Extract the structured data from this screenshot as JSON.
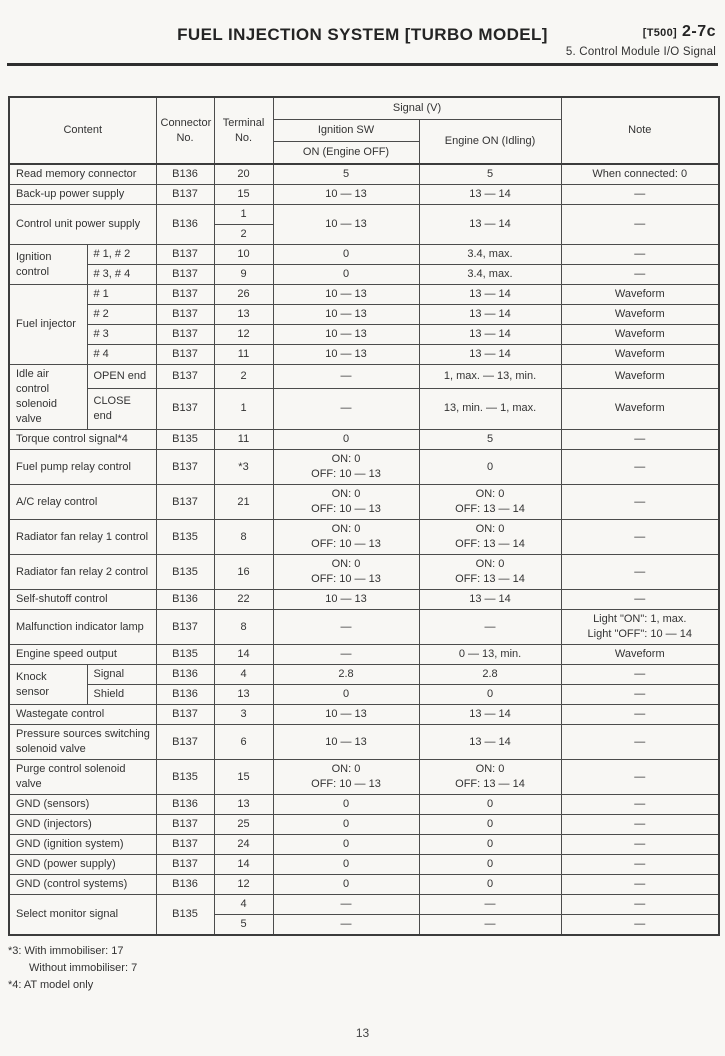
{
  "page": {
    "header": {
      "title": "FUEL INJECTION SYSTEM [TURBO MODEL]",
      "code_small": "[T500]",
      "code_large": "2-7c",
      "subtitle": "5. Control Module I/O Signal"
    },
    "footnotes": {
      "line1": "*3: With immobiliser: 17",
      "line2": "Without immobiliser: 7",
      "line3": "*4: AT model only"
    },
    "page_number": "13"
  },
  "table": {
    "header": {
      "content": "Content",
      "connector": "Connector No.",
      "terminal": "Terminal No.",
      "signal": "Signal (V)",
      "ignition_sw": "Ignition SW",
      "ignition_sw_sub": "ON (Engine OFF)",
      "engine_on": "Engine ON (Idling)",
      "note": "Note"
    },
    "rows": [
      [
        {
          "t": "Read memory connector",
          "cs": 2,
          "al": "l"
        },
        {
          "t": "B136"
        },
        {
          "t": "20"
        },
        {
          "t": "5"
        },
        {
          "t": "5"
        },
        {
          "t": "When connected: 0"
        }
      ],
      [
        {
          "t": "Back-up power supply",
          "cs": 2,
          "al": "l"
        },
        {
          "t": "B137"
        },
        {
          "t": "15"
        },
        {
          "t": "10 — 13"
        },
        {
          "t": "13 — 14"
        },
        {
          "t": "—"
        }
      ],
      [
        {
          "t": "Control unit power supply",
          "cs": 2,
          "rs": 2,
          "al": "l"
        },
        {
          "t": "B136",
          "rs": 2
        },
        {
          "t": "1"
        },
        {
          "t": "10 — 13",
          "rs": 2
        },
        {
          "t": "13 — 14",
          "rs": 2
        },
        {
          "t": "—",
          "rs": 2
        }
      ],
      [
        {
          "t": "2"
        }
      ],
      [
        {
          "t": "Ignition control",
          "rs": 2,
          "al": "l"
        },
        {
          "t": "# 1, # 2",
          "al": "l"
        },
        {
          "t": "B137"
        },
        {
          "t": "10"
        },
        {
          "t": "0"
        },
        {
          "t": "3.4, max."
        },
        {
          "t": "—"
        }
      ],
      [
        {
          "t": "# 3, # 4",
          "al": "l"
        },
        {
          "t": "B137"
        },
        {
          "t": "9"
        },
        {
          "t": "0"
        },
        {
          "t": "3.4, max."
        },
        {
          "t": "—"
        }
      ],
      [
        {
          "t": "Fuel injector",
          "rs": 4,
          "al": "l"
        },
        {
          "t": "# 1",
          "al": "l"
        },
        {
          "t": "B137"
        },
        {
          "t": "26"
        },
        {
          "t": "10 — 13"
        },
        {
          "t": "13 — 14"
        },
        {
          "t": "Waveform"
        }
      ],
      [
        {
          "t": "# 2",
          "al": "l"
        },
        {
          "t": "B137"
        },
        {
          "t": "13"
        },
        {
          "t": "10 — 13"
        },
        {
          "t": "13 — 14"
        },
        {
          "t": "Waveform"
        }
      ],
      [
        {
          "t": "# 3",
          "al": "l"
        },
        {
          "t": "B137"
        },
        {
          "t": "12"
        },
        {
          "t": "10 — 13"
        },
        {
          "t": "13 — 14"
        },
        {
          "t": "Waveform"
        }
      ],
      [
        {
          "t": "# 4",
          "al": "l"
        },
        {
          "t": "B137"
        },
        {
          "t": "11"
        },
        {
          "t": "10 — 13"
        },
        {
          "t": "13 — 14"
        },
        {
          "t": "Waveform"
        }
      ],
      [
        {
          "t": "Idle air control solenoid valve",
          "rs": 2,
          "al": "l"
        },
        {
          "t": "OPEN end",
          "al": "l"
        },
        {
          "t": "B137"
        },
        {
          "t": "2"
        },
        {
          "t": "—"
        },
        {
          "t": "1, max. — 13, min."
        },
        {
          "t": "Waveform"
        }
      ],
      [
        {
          "t": "CLOSE end",
          "al": "l"
        },
        {
          "t": "B137"
        },
        {
          "t": "1"
        },
        {
          "t": "—"
        },
        {
          "t": "13, min. — 1, max."
        },
        {
          "t": "Waveform"
        }
      ],
      [
        {
          "t": "Torque control signal*4",
          "cs": 2,
          "al": "l"
        },
        {
          "t": "B135"
        },
        {
          "t": "11"
        },
        {
          "t": "0"
        },
        {
          "t": "5"
        },
        {
          "t": "—"
        }
      ],
      [
        {
          "t": "Fuel pump relay control",
          "cs": 2,
          "al": "l"
        },
        {
          "t": "B137"
        },
        {
          "t": "*3"
        },
        {
          "t": "ON: 0\nOFF: 10 — 13"
        },
        {
          "t": "0"
        },
        {
          "t": "—"
        }
      ],
      [
        {
          "t": "A/C relay control",
          "cs": 2,
          "al": "l"
        },
        {
          "t": "B137"
        },
        {
          "t": "21"
        },
        {
          "t": "ON: 0\nOFF: 10 — 13"
        },
        {
          "t": "ON: 0\nOFF: 13 — 14"
        },
        {
          "t": "—"
        }
      ],
      [
        {
          "t": "Radiator fan relay 1 control",
          "cs": 2,
          "al": "l"
        },
        {
          "t": "B135"
        },
        {
          "t": "8"
        },
        {
          "t": "ON: 0\nOFF: 10 — 13"
        },
        {
          "t": "ON: 0\nOFF: 13 — 14"
        },
        {
          "t": "—"
        }
      ],
      [
        {
          "t": "Radiator fan relay 2 control",
          "cs": 2,
          "al": "l"
        },
        {
          "t": "B135"
        },
        {
          "t": "16"
        },
        {
          "t": "ON: 0\nOFF: 10 — 13"
        },
        {
          "t": "ON: 0\nOFF: 13 — 14"
        },
        {
          "t": "—"
        }
      ],
      [
        {
          "t": "Self-shutoff control",
          "cs": 2,
          "al": "l"
        },
        {
          "t": "B136"
        },
        {
          "t": "22"
        },
        {
          "t": "10 — 13"
        },
        {
          "t": "13 — 14"
        },
        {
          "t": "—"
        }
      ],
      [
        {
          "t": "Malfunction indicator lamp",
          "cs": 2,
          "al": "l"
        },
        {
          "t": "B137"
        },
        {
          "t": "8"
        },
        {
          "t": "—"
        },
        {
          "t": "—"
        },
        {
          "t": "Light \"ON\": 1, max.\nLight \"OFF\": 10 — 14"
        }
      ],
      [
        {
          "t": "Engine speed output",
          "cs": 2,
          "al": "l"
        },
        {
          "t": "B135"
        },
        {
          "t": "14"
        },
        {
          "t": "—"
        },
        {
          "t": "0 — 13, min."
        },
        {
          "t": "Waveform"
        }
      ],
      [
        {
          "t": "Knock sensor",
          "rs": 2,
          "al": "l"
        },
        {
          "t": "Signal",
          "al": "l"
        },
        {
          "t": "B136"
        },
        {
          "t": "4"
        },
        {
          "t": "2.8"
        },
        {
          "t": "2.8"
        },
        {
          "t": "—"
        }
      ],
      [
        {
          "t": "Shield",
          "al": "l"
        },
        {
          "t": "B136"
        },
        {
          "t": "13"
        },
        {
          "t": "0"
        },
        {
          "t": "0"
        },
        {
          "t": "—"
        }
      ],
      [
        {
          "t": "Wastegate control",
          "cs": 2,
          "al": "l"
        },
        {
          "t": "B137"
        },
        {
          "t": "3"
        },
        {
          "t": "10 — 13"
        },
        {
          "t": "13 — 14"
        },
        {
          "t": "—"
        }
      ],
      [
        {
          "t": "Pressure sources switching solenoid valve",
          "cs": 2,
          "al": "l"
        },
        {
          "t": "B137"
        },
        {
          "t": "6"
        },
        {
          "t": "10 — 13"
        },
        {
          "t": "13 — 14"
        },
        {
          "t": "—"
        }
      ],
      [
        {
          "t": "Purge control solenoid valve",
          "cs": 2,
          "al": "l"
        },
        {
          "t": "B135"
        },
        {
          "t": "15"
        },
        {
          "t": "ON: 0\nOFF: 10 — 13"
        },
        {
          "t": "ON: 0\nOFF: 13 — 14"
        },
        {
          "t": "—"
        }
      ],
      [
        {
          "t": "GND (sensors)",
          "cs": 2,
          "al": "l"
        },
        {
          "t": "B136"
        },
        {
          "t": "13"
        },
        {
          "t": "0"
        },
        {
          "t": "0"
        },
        {
          "t": "—"
        }
      ],
      [
        {
          "t": "GND (injectors)",
          "cs": 2,
          "al": "l"
        },
        {
          "t": "B137"
        },
        {
          "t": "25"
        },
        {
          "t": "0"
        },
        {
          "t": "0"
        },
        {
          "t": "—"
        }
      ],
      [
        {
          "t": "GND (ignition system)",
          "cs": 2,
          "al": "l"
        },
        {
          "t": "B137"
        },
        {
          "t": "24"
        },
        {
          "t": "0"
        },
        {
          "t": "0"
        },
        {
          "t": "—"
        }
      ],
      [
        {
          "t": "GND (power supply)",
          "cs": 2,
          "al": "l"
        },
        {
          "t": "B137"
        },
        {
          "t": "14"
        },
        {
          "t": "0"
        },
        {
          "t": "0"
        },
        {
          "t": "—"
        }
      ],
      [
        {
          "t": "GND (control systems)",
          "cs": 2,
          "al": "l"
        },
        {
          "t": "B136"
        },
        {
          "t": "12"
        },
        {
          "t": "0"
        },
        {
          "t": "0"
        },
        {
          "t": "—"
        }
      ],
      [
        {
          "t": "Select monitor signal",
          "cs": 2,
          "rs": 2,
          "al": "l"
        },
        {
          "t": "B135",
          "rs": 2
        },
        {
          "t": "4"
        },
        {
          "t": "—"
        },
        {
          "t": "—"
        },
        {
          "t": "—"
        }
      ],
      [
        {
          "t": "5"
        },
        {
          "t": "—"
        },
        {
          "t": "—"
        },
        {
          "t": "—"
        }
      ]
    ]
  }
}
